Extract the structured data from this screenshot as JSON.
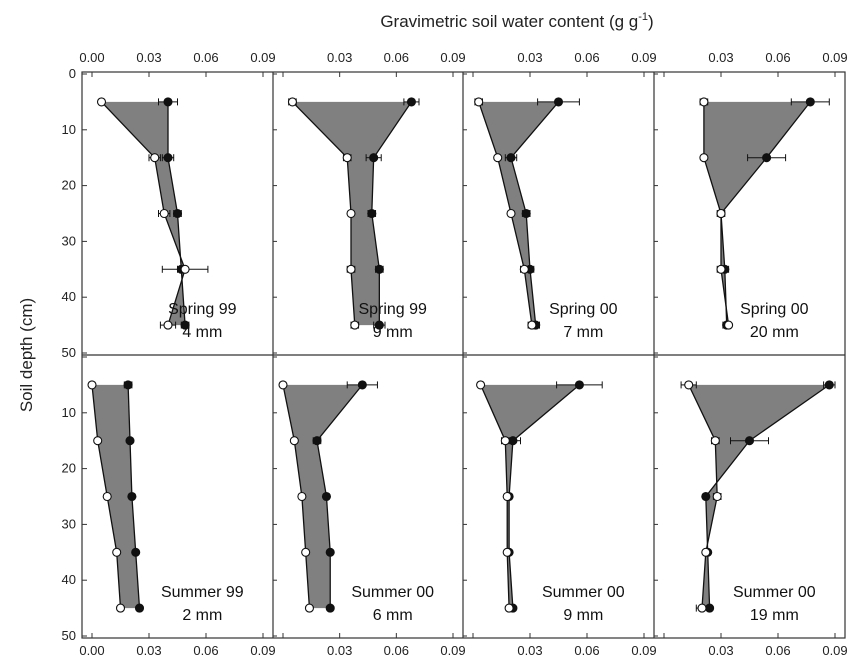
{
  "chart_data": {
    "type": "line",
    "title": "",
    "xlabel": "Gravimetric soil water content (g g",
    "xlabel_superscript": "-1",
    "xlabel_suffix": ")",
    "ylabel": "Soil depth (cm)",
    "xlim": [
      0,
      0.09
    ],
    "ylim": [
      0,
      50
    ],
    "y_inverted": true,
    "grid": false,
    "x_ticks": [
      "0.00",
      "0.03",
      "0.06",
      "0.09"
    ],
    "y_ticks": [
      "0",
      "10",
      "20",
      "30",
      "40",
      "50"
    ],
    "fill_color": "#808080",
    "depths": [
      5,
      15,
      25,
      35,
      45
    ],
    "panels": [
      {
        "season": "Spring 99",
        "amount": "4 mm",
        "series": [
          {
            "marker": "filled",
            "values": [
              0.04,
              0.04,
              0.045,
              0.047,
              0.049
            ],
            "err": [
              0.005,
              0.003,
              0.002,
              0.002,
              0.002
            ]
          },
          {
            "marker": "open",
            "values": [
              0.005,
              0.033,
              0.038,
              0.049,
              0.04
            ],
            "err": [
              0,
              0.003,
              0.003,
              0.012,
              0.004
            ]
          }
        ]
      },
      {
        "season": "Spring 99",
        "amount": "9 mm",
        "series": [
          {
            "marker": "filled",
            "values": [
              0.068,
              0.048,
              0.047,
              0.051,
              0.051
            ],
            "err": [
              0.004,
              0.004,
              0.002,
              0.002,
              0.003
            ]
          },
          {
            "marker": "open",
            "values": [
              0.005,
              0.034,
              0.036,
              0.036,
              0.038
            ],
            "err": [
              0.002,
              0.002,
              0.001,
              0.002,
              0.002
            ]
          }
        ]
      },
      {
        "season": "Spring 00",
        "amount": "7 mm",
        "series": [
          {
            "marker": "filled",
            "values": [
              0.045,
              0.02,
              0.028,
              0.03,
              0.033
            ],
            "err": [
              0.011,
              0.003,
              0.002,
              0.002,
              0.002
            ]
          },
          {
            "marker": "open",
            "values": [
              0.003,
              0.013,
              0.02,
              0.027,
              0.031
            ],
            "err": [
              0.002,
              0.001,
              0.001,
              0.002,
              0.002
            ]
          }
        ]
      },
      {
        "season": "Spring 00",
        "amount": "20 mm",
        "series": [
          {
            "marker": "filled",
            "values": [
              0.077,
              0.054,
              0.03,
              0.032,
              0.033
            ],
            "err": [
              0.01,
              0.01,
              0.002,
              0.002,
              0.002
            ]
          },
          {
            "marker": "open",
            "values": [
              0.021,
              0.021,
              0.03,
              0.03,
              0.034
            ],
            "err": [
              0.002,
              0.001,
              0.001,
              0.002,
              0.001
            ]
          }
        ]
      },
      {
        "season": "Summer 99",
        "amount": "2 mm",
        "series": [
          {
            "marker": "filled",
            "values": [
              0.019,
              0.02,
              0.021,
              0.023,
              0.025
            ],
            "err": [
              0.002,
              0.001,
              0.001,
              0.001,
              0.001
            ]
          },
          {
            "marker": "open",
            "values": [
              0.0,
              0.003,
              0.008,
              0.013,
              0.015
            ],
            "err": [
              0,
              0,
              0,
              0,
              0
            ]
          }
        ]
      },
      {
        "season": "Summer 00",
        "amount": "6 mm",
        "series": [
          {
            "marker": "filled",
            "values": [
              0.042,
              0.018,
              0.023,
              0.025,
              0.025
            ],
            "err": [
              0.008,
              0.002,
              0.001,
              0.001,
              0.001
            ]
          },
          {
            "marker": "open",
            "values": [
              0.0,
              0.006,
              0.01,
              0.012,
              0.014
            ],
            "err": [
              0,
              0,
              0,
              0,
              0.001
            ]
          }
        ]
      },
      {
        "season": "Summer 00",
        "amount": "9 mm",
        "series": [
          {
            "marker": "filled",
            "values": [
              0.056,
              0.021,
              0.019,
              0.019,
              0.021
            ],
            "err": [
              0.012,
              0.004,
              0.001,
              0.001,
              0.001
            ]
          },
          {
            "marker": "open",
            "values": [
              0.004,
              0.017,
              0.018,
              0.018,
              0.019
            ],
            "err": [
              0,
              0.002,
              0.001,
              0.001,
              0.001
            ]
          }
        ]
      },
      {
        "season": "Summer 00",
        "amount": "19 mm",
        "series": [
          {
            "marker": "filled",
            "values": [
              0.087,
              0.045,
              0.022,
              0.023,
              0.024
            ],
            "err": [
              0.003,
              0.01,
              0.001,
              0.001,
              0.001
            ]
          },
          {
            "marker": "open",
            "values": [
              0.013,
              0.027,
              0.028,
              0.022,
              0.02
            ],
            "err": [
              0.004,
              0.002,
              0.002,
              0.001,
              0.003
            ]
          }
        ]
      }
    ]
  }
}
